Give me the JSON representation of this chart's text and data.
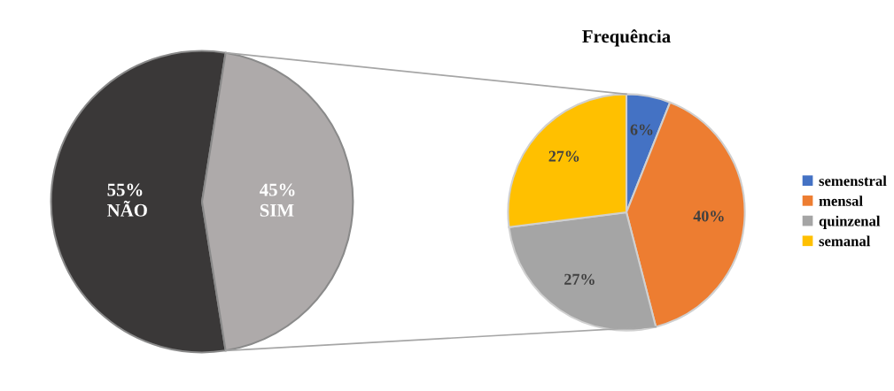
{
  "chart_data": [
    {
      "type": "pie",
      "categories": [
        "NÃO",
        "SIM"
      ],
      "values": [
        55,
        45
      ],
      "colors": [
        "#3a3838",
        "#aeaaaa"
      ],
      "value_labels": [
        "55%",
        "45%"
      ],
      "legend": false
    },
    {
      "type": "pie",
      "title": "Frequência",
      "categories": [
        "semenstral",
        "mensal",
        "quinzenal",
        "semanal"
      ],
      "values": [
        6,
        40,
        27,
        27
      ],
      "colors": [
        "#4472c4",
        "#ed7d31",
        "#a5a5a5",
        "#ffc000"
      ],
      "value_labels": [
        "6%",
        "40%",
        "27%",
        "27%"
      ],
      "legend": "right"
    }
  ]
}
